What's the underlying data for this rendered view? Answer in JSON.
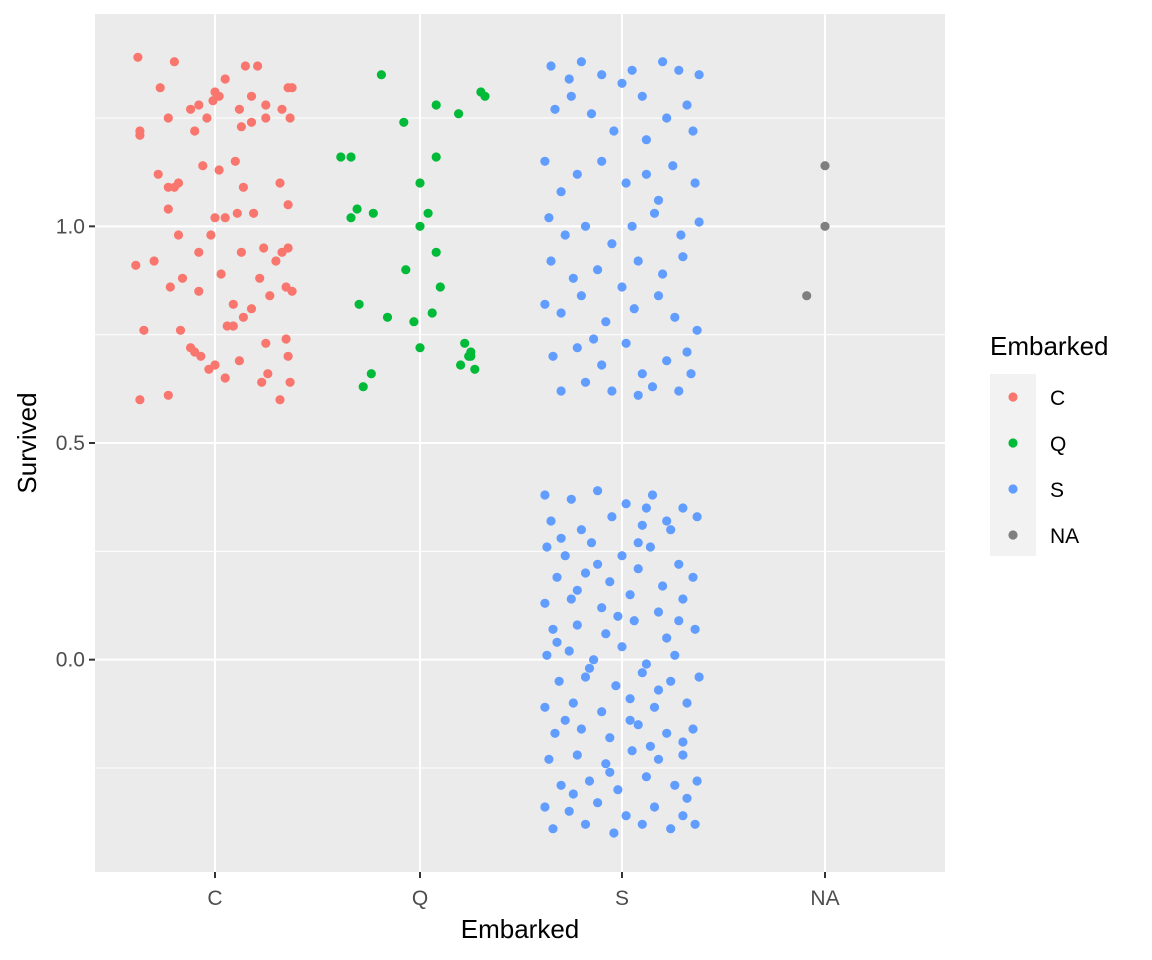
{
  "chart_data": {
    "type": "scatter",
    "subtype": "jitter",
    "title": "",
    "xlabel": "Embarked",
    "ylabel": "Survived",
    "categories": [
      "C",
      "Q",
      "S",
      "NA"
    ],
    "ylim": [
      -0.49,
      1.49
    ],
    "y_ticks": [
      0.0,
      0.5,
      1.0
    ],
    "y_tick_labels": [
      "0.0",
      "0.5",
      "1.0"
    ],
    "grid": true,
    "panel_background": "#ebebeb",
    "legend": {
      "title": "Embarked",
      "position": "right",
      "entries": [
        "C",
        "Q",
        "S",
        "NA"
      ]
    },
    "colors": {
      "C": "#f8766d",
      "Q": "#00ba38",
      "S": "#619cff",
      "NA": "#7f7f7f"
    },
    "series": [
      {
        "name": "C",
        "points": [
          [
            -0.38,
            1.39
          ],
          [
            -0.2,
            1.38
          ],
          [
            -0.37,
            1.22
          ],
          [
            -0.37,
            1.21
          ],
          [
            -0.27,
            1.32
          ],
          [
            -0.23,
            1.25
          ],
          [
            -0.12,
            1.27
          ],
          [
            -0.08,
            1.28
          ],
          [
            -0.01,
            1.29
          ],
          [
            0.0,
            1.31
          ],
          [
            0.05,
            1.34
          ],
          [
            0.15,
            1.37
          ],
          [
            0.21,
            1.37
          ],
          [
            0.18,
            1.3
          ],
          [
            0.25,
            1.28
          ],
          [
            0.36,
            1.32
          ],
          [
            0.38,
            1.32
          ],
          [
            0.37,
            1.25
          ],
          [
            0.33,
            1.27
          ],
          [
            0.12,
            1.27
          ],
          [
            0.02,
            1.3
          ],
          [
            -0.04,
            1.25
          ],
          [
            -0.1,
            1.22
          ],
          [
            0.18,
            1.24
          ],
          [
            0.13,
            1.23
          ],
          [
            0.25,
            1.25
          ],
          [
            -0.23,
            1.09
          ],
          [
            -0.18,
            1.1
          ],
          [
            -0.28,
            1.12
          ],
          [
            -0.2,
            1.09
          ],
          [
            -0.06,
            1.14
          ],
          [
            0.1,
            1.15
          ],
          [
            0.02,
            1.13
          ],
          [
            0.14,
            1.09
          ],
          [
            0.36,
            1.05
          ],
          [
            0.19,
            1.03
          ],
          [
            0.32,
            1.1
          ],
          [
            0.11,
            1.03
          ],
          [
            0.0,
            1.02
          ],
          [
            0.05,
            1.02
          ],
          [
            -0.23,
            1.04
          ],
          [
            -0.18,
            0.98
          ],
          [
            -0.39,
            0.91
          ],
          [
            -0.3,
            0.92
          ],
          [
            -0.08,
            0.94
          ],
          [
            -0.02,
            0.98
          ],
          [
            0.13,
            0.94
          ],
          [
            0.24,
            0.95
          ],
          [
            0.36,
            0.95
          ],
          [
            0.33,
            0.94
          ],
          [
            0.3,
            0.92
          ],
          [
            0.22,
            0.88
          ],
          [
            0.03,
            0.89
          ],
          [
            -0.16,
            0.88
          ],
          [
            -0.22,
            0.86
          ],
          [
            0.09,
            0.82
          ],
          [
            0.35,
            0.86
          ],
          [
            0.27,
            0.84
          ],
          [
            0.38,
            0.85
          ],
          [
            -0.08,
            0.85
          ],
          [
            -0.35,
            0.76
          ],
          [
            -0.17,
            0.76
          ],
          [
            -0.1,
            0.71
          ],
          [
            0.06,
            0.77
          ],
          [
            0.09,
            0.77
          ],
          [
            0.14,
            0.79
          ],
          [
            0.18,
            0.81
          ],
          [
            0.25,
            0.73
          ],
          [
            0.35,
            0.74
          ],
          [
            0.36,
            0.7
          ],
          [
            -0.12,
            0.72
          ],
          [
            -0.07,
            0.7
          ],
          [
            -0.03,
            0.67
          ],
          [
            0.0,
            0.68
          ],
          [
            0.05,
            0.65
          ],
          [
            0.12,
            0.69
          ],
          [
            0.23,
            0.64
          ],
          [
            0.26,
            0.66
          ],
          [
            0.37,
            0.64
          ],
          [
            -0.37,
            0.6
          ],
          [
            -0.23,
            0.61
          ],
          [
            0.32,
            0.6
          ]
        ]
      },
      {
        "name": "Q",
        "points": [
          [
            -0.19,
            1.35
          ],
          [
            -0.08,
            1.24
          ],
          [
            0.08,
            1.28
          ],
          [
            0.19,
            1.26
          ],
          [
            0.3,
            1.31
          ],
          [
            0.32,
            1.3
          ],
          [
            -0.39,
            1.16
          ],
          [
            -0.34,
            1.16
          ],
          [
            0.08,
            1.16
          ],
          [
            0.0,
            1.1
          ],
          [
            -0.34,
            1.02
          ],
          [
            -0.31,
            1.04
          ],
          [
            -0.23,
            1.03
          ],
          [
            0.04,
            1.03
          ],
          [
            0.0,
            1.0
          ],
          [
            0.08,
            0.94
          ],
          [
            -0.07,
            0.9
          ],
          [
            0.1,
            0.86
          ],
          [
            -0.3,
            0.82
          ],
          [
            -0.16,
            0.79
          ],
          [
            -0.03,
            0.78
          ],
          [
            0.06,
            0.8
          ],
          [
            0.0,
            0.72
          ],
          [
            0.22,
            0.73
          ],
          [
            0.25,
            0.71
          ],
          [
            0.24,
            0.7
          ],
          [
            0.25,
            0.7
          ],
          [
            0.2,
            0.68
          ],
          [
            0.27,
            0.67
          ],
          [
            -0.28,
            0.63
          ],
          [
            -0.24,
            0.66
          ]
        ]
      },
      {
        "name": "S",
        "points": [
          [
            -0.35,
            1.37
          ],
          [
            -0.2,
            1.38
          ],
          [
            -0.1,
            1.35
          ],
          [
            0.05,
            1.36
          ],
          [
            0.1,
            1.3
          ],
          [
            0.2,
            1.38
          ],
          [
            0.28,
            1.36
          ],
          [
            0.32,
            1.28
          ],
          [
            0.38,
            1.35
          ],
          [
            -0.33,
            1.27
          ],
          [
            -0.25,
            1.3
          ],
          [
            -0.15,
            1.26
          ],
          [
            0.0,
            1.33
          ],
          [
            0.12,
            1.2
          ],
          [
            0.22,
            1.25
          ],
          [
            0.35,
            1.22
          ],
          [
            -0.38,
            1.15
          ],
          [
            -0.3,
            1.08
          ],
          [
            -0.22,
            1.12
          ],
          [
            -0.1,
            1.15
          ],
          [
            0.02,
            1.1
          ],
          [
            0.12,
            1.12
          ],
          [
            0.25,
            1.14
          ],
          [
            0.36,
            1.1
          ],
          [
            -0.36,
            1.02
          ],
          [
            -0.28,
            0.98
          ],
          [
            -0.18,
            1.0
          ],
          [
            -0.05,
            0.96
          ],
          [
            0.05,
            1.0
          ],
          [
            0.16,
            1.03
          ],
          [
            0.29,
            0.98
          ],
          [
            0.38,
            1.01
          ],
          [
            -0.35,
            0.92
          ],
          [
            -0.24,
            0.88
          ],
          [
            -0.12,
            0.9
          ],
          [
            0.0,
            0.86
          ],
          [
            0.08,
            0.92
          ],
          [
            0.2,
            0.89
          ],
          [
            0.3,
            0.93
          ],
          [
            -0.38,
            0.82
          ],
          [
            -0.3,
            0.8
          ],
          [
            -0.2,
            0.84
          ],
          [
            -0.08,
            0.78
          ],
          [
            0.06,
            0.81
          ],
          [
            0.18,
            0.84
          ],
          [
            0.26,
            0.79
          ],
          [
            0.37,
            0.76
          ],
          [
            -0.34,
            0.7
          ],
          [
            -0.22,
            0.72
          ],
          [
            -0.1,
            0.68
          ],
          [
            0.02,
            0.73
          ],
          [
            0.1,
            0.66
          ],
          [
            0.22,
            0.69
          ],
          [
            0.32,
            0.71
          ],
          [
            -0.3,
            0.62
          ],
          [
            -0.18,
            0.64
          ],
          [
            -0.05,
            0.62
          ],
          [
            0.08,
            0.61
          ],
          [
            0.15,
            0.63
          ],
          [
            0.28,
            0.62
          ],
          [
            -0.26,
            1.34
          ],
          [
            -0.04,
            1.22
          ],
          [
            0.18,
            1.06
          ],
          [
            -0.14,
            0.74
          ],
          [
            0.34,
            0.66
          ],
          [
            -0.38,
            0.38
          ],
          [
            -0.25,
            0.37
          ],
          [
            -0.12,
            0.39
          ],
          [
            0.02,
            0.36
          ],
          [
            0.15,
            0.38
          ],
          [
            0.3,
            0.35
          ],
          [
            -0.35,
            0.32
          ],
          [
            -0.2,
            0.3
          ],
          [
            -0.05,
            0.33
          ],
          [
            0.1,
            0.31
          ],
          [
            0.24,
            0.3
          ],
          [
            0.37,
            0.33
          ],
          [
            -0.37,
            0.26
          ],
          [
            -0.28,
            0.24
          ],
          [
            -0.15,
            0.27
          ],
          [
            0.0,
            0.24
          ],
          [
            0.14,
            0.26
          ],
          [
            0.28,
            0.22
          ],
          [
            -0.32,
            0.19
          ],
          [
            -0.18,
            0.2
          ],
          [
            -0.06,
            0.18
          ],
          [
            0.08,
            0.21
          ],
          [
            0.2,
            0.17
          ],
          [
            0.35,
            0.19
          ],
          [
            -0.38,
            0.13
          ],
          [
            -0.25,
            0.14
          ],
          [
            -0.1,
            0.12
          ],
          [
            0.04,
            0.15
          ],
          [
            0.18,
            0.11
          ],
          [
            0.3,
            0.14
          ],
          [
            -0.34,
            0.07
          ],
          [
            -0.22,
            0.08
          ],
          [
            -0.08,
            0.06
          ],
          [
            0.06,
            0.09
          ],
          [
            0.22,
            0.05
          ],
          [
            0.36,
            0.07
          ],
          [
            -0.37,
            0.01
          ],
          [
            -0.26,
            0.02
          ],
          [
            -0.14,
            0.0
          ],
          [
            0.0,
            0.03
          ],
          [
            0.12,
            -0.01
          ],
          [
            0.26,
            0.01
          ],
          [
            -0.31,
            -0.05
          ],
          [
            -0.18,
            -0.04
          ],
          [
            -0.03,
            -0.06
          ],
          [
            0.1,
            -0.03
          ],
          [
            0.24,
            -0.05
          ],
          [
            0.38,
            -0.04
          ],
          [
            -0.38,
            -0.11
          ],
          [
            -0.24,
            -0.1
          ],
          [
            -0.1,
            -0.12
          ],
          [
            0.04,
            -0.09
          ],
          [
            0.16,
            -0.11
          ],
          [
            0.32,
            -0.1
          ],
          [
            -0.33,
            -0.17
          ],
          [
            -0.2,
            -0.16
          ],
          [
            -0.06,
            -0.18
          ],
          [
            0.08,
            -0.15
          ],
          [
            0.22,
            -0.17
          ],
          [
            0.35,
            -0.16
          ],
          [
            -0.36,
            -0.23
          ],
          [
            -0.22,
            -0.22
          ],
          [
            -0.08,
            -0.24
          ],
          [
            0.05,
            -0.21
          ],
          [
            0.18,
            -0.23
          ],
          [
            0.3,
            -0.22
          ],
          [
            -0.3,
            -0.29
          ],
          [
            -0.16,
            -0.28
          ],
          [
            -0.02,
            -0.3
          ],
          [
            0.12,
            -0.27
          ],
          [
            0.26,
            -0.29
          ],
          [
            0.37,
            -0.28
          ],
          [
            -0.38,
            -0.34
          ],
          [
            -0.26,
            -0.35
          ],
          [
            -0.12,
            -0.33
          ],
          [
            0.02,
            -0.36
          ],
          [
            0.16,
            -0.34
          ],
          [
            0.3,
            -0.36
          ],
          [
            -0.34,
            -0.39
          ],
          [
            -0.18,
            -0.38
          ],
          [
            -0.04,
            -0.4
          ],
          [
            0.1,
            -0.38
          ],
          [
            0.24,
            -0.39
          ],
          [
            0.36,
            -0.38
          ],
          [
            -0.3,
            0.28
          ],
          [
            0.08,
            0.27
          ],
          [
            -0.22,
            0.16
          ],
          [
            0.28,
            0.09
          ],
          [
            -0.16,
            -0.02
          ],
          [
            0.18,
            -0.07
          ],
          [
            -0.28,
            -0.14
          ],
          [
            0.14,
            -0.2
          ],
          [
            -0.06,
            -0.26
          ],
          [
            0.32,
            -0.32
          ],
          [
            -0.12,
            0.22
          ],
          [
            0.22,
            0.32
          ],
          [
            -0.32,
            0.04
          ],
          [
            0.04,
            -0.14
          ],
          [
            -0.02,
            0.1
          ],
          [
            0.3,
            -0.19
          ],
          [
            -0.24,
            -0.31
          ],
          [
            0.12,
            0.35
          ]
        ]
      },
      {
        "name": "NA",
        "points": [
          [
            0.0,
            1.14
          ],
          [
            0.0,
            1.0
          ],
          [
            -0.09,
            0.84
          ]
        ]
      }
    ]
  }
}
